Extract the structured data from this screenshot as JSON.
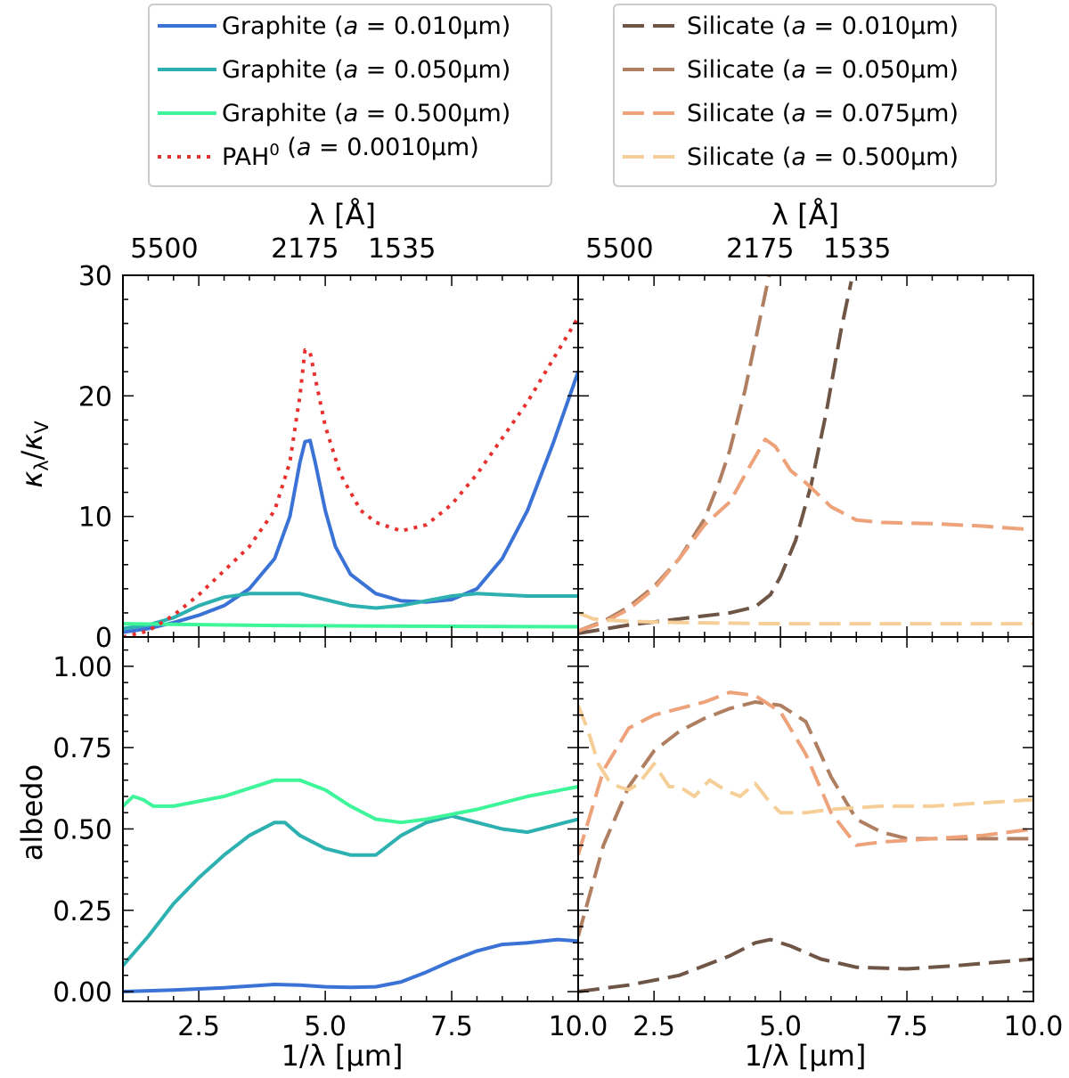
{
  "chart_data": [
    {
      "type": "line",
      "panel": "top-left",
      "ylabel": "κλ/κV",
      "top_axis_label": "λ [Å]",
      "top_ticks": [
        {
          "x": 1.818,
          "label": "5500"
        },
        {
          "x": 4.598,
          "label": "2175"
        },
        {
          "x": 6.515,
          "label": "1535"
        }
      ],
      "xlim": [
        1.0,
        10.0
      ],
      "ylim": [
        0,
        30
      ],
      "yticks": [
        0,
        10,
        20,
        30
      ],
      "series": [
        {
          "name": "Graphite (a = 0.010μm)",
          "color": "#3a72d6",
          "style": "solid",
          "x": [
            1.0,
            1.5,
            2.0,
            2.5,
            3.0,
            3.5,
            4.0,
            4.3,
            4.5,
            4.6,
            4.7,
            4.8,
            5.0,
            5.2,
            5.5,
            6.0,
            6.5,
            7.0,
            7.5,
            8.0,
            8.5,
            9.0,
            9.5,
            10.0
          ],
          "y": [
            0.4,
            0.7,
            1.2,
            1.8,
            2.6,
            4.0,
            6.5,
            10.0,
            14.5,
            16.2,
            16.3,
            14.5,
            10.5,
            7.5,
            5.2,
            3.6,
            3.0,
            2.9,
            3.1,
            4.0,
            6.5,
            10.5,
            16.0,
            22.0
          ]
        },
        {
          "name": "Graphite (a = 0.050μm)",
          "color": "#2cb0b0",
          "style": "solid",
          "x": [
            1.0,
            1.5,
            2.0,
            2.5,
            3.0,
            3.5,
            4.0,
            4.5,
            5.0,
            5.5,
            6.0,
            6.5,
            7.0,
            7.5,
            8.0,
            8.5,
            9.0,
            10.0
          ],
          "y": [
            0.7,
            1.0,
            1.6,
            2.6,
            3.3,
            3.6,
            3.6,
            3.6,
            3.1,
            2.6,
            2.4,
            2.6,
            3.0,
            3.4,
            3.6,
            3.5,
            3.4,
            3.4
          ]
        },
        {
          "name": "Graphite (a = 0.500μm)",
          "color": "#3ef59a",
          "style": "solid",
          "x": [
            1.0,
            2.0,
            4.0,
            6.0,
            8.0,
            10.0
          ],
          "y": [
            1.1,
            1.05,
            0.95,
            0.9,
            0.88,
            0.85
          ]
        },
        {
          "name": "PAH0 (a = 0.0010μm)",
          "color": "#e8302e",
          "style": "dotted",
          "x": [
            1.0,
            1.5,
            2.0,
            2.5,
            3.0,
            3.5,
            4.0,
            4.3,
            4.5,
            4.6,
            4.7,
            4.8,
            5.0,
            5.3,
            5.7,
            6.0,
            6.5,
            7.0,
            7.5,
            8.0,
            8.5,
            9.0,
            9.5,
            10.0
          ],
          "y": [
            0.0,
            0.5,
            1.8,
            3.5,
            5.5,
            7.5,
            10.5,
            14.5,
            20.0,
            23.8,
            23.6,
            21.5,
            17.5,
            13.5,
            10.5,
            9.5,
            8.8,
            9.3,
            11.0,
            13.5,
            16.5,
            19.5,
            23.0,
            26.5
          ]
        }
      ]
    },
    {
      "type": "line",
      "panel": "top-right",
      "top_axis_label": "λ [Å]",
      "top_ticks": [
        {
          "x": 1.818,
          "label": "5500"
        },
        {
          "x": 4.598,
          "label": "2175"
        },
        {
          "x": 6.515,
          "label": "1535"
        }
      ],
      "xlim": [
        1.0,
        10.0
      ],
      "ylim": [
        0,
        30
      ],
      "series": [
        {
          "name": "Silicate (a = 0.010μm)",
          "color": "#6f5545",
          "style": "dashed",
          "x": [
            1.0,
            2.0,
            3.0,
            4.0,
            4.5,
            4.8,
            5.0,
            5.3,
            5.6,
            5.9,
            6.2,
            6.4
          ],
          "y": [
            0.3,
            1.0,
            1.5,
            2.0,
            2.5,
            3.5,
            5.0,
            8.0,
            12.5,
            18.5,
            25.5,
            29.5
          ]
        },
        {
          "name": "Silicate (a = 0.050μm)",
          "color": "#b07f61",
          "style": "dashed",
          "x": [
            1.0,
            1.5,
            2.0,
            2.5,
            3.0,
            3.5,
            3.8,
            4.0,
            4.3,
            4.6,
            4.8
          ],
          "y": [
            0.5,
            1.3,
            2.5,
            4.2,
            6.5,
            9.8,
            13.0,
            15.5,
            20.5,
            26.5,
            30.5
          ]
        },
        {
          "name": "Silicate (a = 0.075μm)",
          "color": "#eda27a",
          "style": "dashed",
          "x": [
            1.0,
            1.5,
            2.0,
            2.5,
            3.0,
            3.5,
            4.0,
            4.4,
            4.7,
            4.9,
            5.2,
            5.5,
            6.0,
            6.5,
            7.0,
            8.0,
            9.0,
            10.0
          ],
          "y": [
            0.5,
            1.2,
            2.3,
            4.0,
            6.5,
            9.3,
            11.2,
            14.2,
            16.4,
            15.8,
            13.8,
            12.8,
            10.8,
            9.7,
            9.5,
            9.4,
            9.2,
            8.9
          ]
        },
        {
          "name": "Silicate (a = 0.500μm)",
          "color": "#f6cf98",
          "style": "dashed",
          "x": [
            1.0,
            1.3,
            1.6,
            2.0,
            3.0,
            5.0,
            7.0,
            10.0
          ],
          "y": [
            2.0,
            1.5,
            1.4,
            1.3,
            1.2,
            1.1,
            1.1,
            1.1
          ]
        }
      ]
    },
    {
      "type": "line",
      "panel": "bottom-left",
      "ylabel": "albedo",
      "xlabel": "1/λ [μm]",
      "xlim": [
        1.0,
        10.0
      ],
      "ylim": [
        -0.03,
        1.09
      ],
      "yticks": [
        0.0,
        0.25,
        0.5,
        0.75,
        1.0
      ],
      "series": [
        {
          "name": "Graphite (a = 0.010μm)",
          "color": "#3a72d6",
          "style": "solid",
          "x": [
            1.0,
            2.0,
            3.0,
            4.0,
            4.5,
            5.0,
            5.5,
            6.0,
            6.5,
            7.0,
            7.5,
            8.0,
            8.5,
            9.0,
            9.3,
            9.6,
            10.0
          ],
          "y": [
            0.0,
            0.005,
            0.012,
            0.022,
            0.02,
            0.015,
            0.013,
            0.015,
            0.03,
            0.06,
            0.095,
            0.125,
            0.145,
            0.15,
            0.155,
            0.16,
            0.155
          ]
        },
        {
          "name": "Graphite (a = 0.050μm)",
          "color": "#2cb0b0",
          "style": "solid",
          "x": [
            1.0,
            1.5,
            2.0,
            2.5,
            3.0,
            3.5,
            4.0,
            4.2,
            4.5,
            5.0,
            5.5,
            6.0,
            6.5,
            7.0,
            7.5,
            8.0,
            8.5,
            9.0,
            9.5,
            10.0
          ],
          "y": [
            0.08,
            0.17,
            0.27,
            0.35,
            0.42,
            0.48,
            0.52,
            0.52,
            0.48,
            0.44,
            0.42,
            0.42,
            0.48,
            0.52,
            0.54,
            0.52,
            0.5,
            0.49,
            0.51,
            0.53
          ]
        },
        {
          "name": "Graphite (a = 0.500μm)",
          "color": "#3ef59a",
          "style": "solid",
          "x": [
            1.0,
            1.2,
            1.4,
            1.6,
            2.0,
            3.0,
            4.0,
            4.5,
            5.0,
            5.5,
            6.0,
            6.5,
            7.0,
            8.0,
            9.0,
            10.0
          ],
          "y": [
            0.57,
            0.6,
            0.59,
            0.57,
            0.57,
            0.6,
            0.65,
            0.65,
            0.62,
            0.57,
            0.53,
            0.52,
            0.53,
            0.56,
            0.6,
            0.63
          ]
        }
      ]
    },
    {
      "type": "line",
      "panel": "bottom-right",
      "xlabel": "1/λ [μm]",
      "xlim": [
        1.0,
        10.0
      ],
      "ylim": [
        -0.03,
        1.09
      ],
      "xticks": [
        2.5,
        5.0,
        7.5,
        10.0
      ],
      "series": [
        {
          "name": "Silicate (a = 0.010μm)",
          "color": "#6f5545",
          "style": "dashed",
          "x": [
            1.0,
            2.0,
            3.0,
            4.0,
            4.5,
            4.8,
            5.2,
            5.8,
            6.5,
            7.5,
            8.5,
            10.0
          ],
          "y": [
            0.0,
            0.02,
            0.05,
            0.11,
            0.15,
            0.16,
            0.14,
            0.1,
            0.075,
            0.07,
            0.08,
            0.1
          ]
        },
        {
          "name": "Silicate (a = 0.050μm)",
          "color": "#b07f61",
          "style": "dashed",
          "x": [
            1.0,
            1.5,
            2.0,
            2.5,
            3.0,
            3.5,
            4.0,
            4.5,
            5.0,
            5.5,
            6.0,
            6.5,
            7.0,
            7.5,
            8.0,
            9.0,
            10.0
          ],
          "y": [
            0.17,
            0.45,
            0.63,
            0.74,
            0.8,
            0.84,
            0.87,
            0.89,
            0.88,
            0.83,
            0.66,
            0.53,
            0.49,
            0.47,
            0.47,
            0.47,
            0.47
          ]
        },
        {
          "name": "Silicate (a = 0.075μm)",
          "color": "#eda27a",
          "style": "dashed",
          "x": [
            1.0,
            1.5,
            2.0,
            2.5,
            3.0,
            3.5,
            4.0,
            4.5,
            5.0,
            5.5,
            6.0,
            6.5,
            7.0,
            8.0,
            9.0,
            10.0
          ],
          "y": [
            0.42,
            0.68,
            0.81,
            0.85,
            0.87,
            0.89,
            0.92,
            0.91,
            0.86,
            0.73,
            0.55,
            0.45,
            0.46,
            0.47,
            0.48,
            0.5
          ]
        },
        {
          "name": "Silicate (a = 0.500μm)",
          "color": "#f6cf98",
          "style": "dashed",
          "x": [
            1.0,
            1.2,
            1.4,
            1.6,
            1.8,
            2.0,
            2.2,
            2.5,
            2.8,
            3.0,
            3.3,
            3.6,
            3.9,
            4.2,
            4.5,
            4.8,
            5.0,
            5.5,
            6.0,
            7.0,
            8.0,
            9.0,
            10.0
          ],
          "y": [
            0.88,
            0.8,
            0.7,
            0.65,
            0.63,
            0.62,
            0.64,
            0.7,
            0.63,
            0.63,
            0.6,
            0.65,
            0.62,
            0.6,
            0.64,
            0.58,
            0.55,
            0.55,
            0.56,
            0.57,
            0.57,
            0.58,
            0.59
          ]
        }
      ]
    }
  ],
  "legend_left": {
    "entries": [
      {
        "name": "Graphite",
        "a": "0.010μm",
        "sup": "",
        "color": "#3a72d6",
        "style": "solid"
      },
      {
        "name": "Graphite",
        "a": "0.050μm",
        "sup": "",
        "color": "#2cb0b0",
        "style": "solid"
      },
      {
        "name": "Graphite",
        "a": "0.500μm",
        "sup": "",
        "color": "#3ef59a",
        "style": "solid"
      },
      {
        "name": "PAH",
        "a": "0.0010μm",
        "sup": "0",
        "color": "#e8302e",
        "style": "dotted"
      }
    ]
  },
  "legend_right": {
    "entries": [
      {
        "name": "Silicate",
        "a": "0.010μm",
        "sup": "",
        "color": "#6f5545",
        "style": "dashed"
      },
      {
        "name": "Silicate",
        "a": "0.050μm",
        "sup": "",
        "color": "#b07f61",
        "style": "dashed"
      },
      {
        "name": "Silicate",
        "a": "0.075μm",
        "sup": "",
        "color": "#eda27a",
        "style": "dashed"
      },
      {
        "name": "Silicate",
        "a": "0.500μm",
        "sup": "",
        "color": "#f6cf98",
        "style": "dashed"
      }
    ]
  },
  "axis_text": {
    "top_label": "λ [Å]",
    "ylabel_top": "κλ/κV",
    "ylabel_bottom": "albedo",
    "xlabel": "1/λ [μm]",
    "top_ticks": [
      "5500",
      "2175",
      "1535"
    ],
    "y_ticks_top": [
      "0",
      "10",
      "20",
      "30"
    ],
    "y_ticks_bottom": [
      "0.00",
      "0.25",
      "0.50",
      "0.75",
      "1.00"
    ],
    "x_ticks_left": [
      "2.5",
      "5.0",
      "7.5",
      "10.0"
    ],
    "x_ticks_right": [
      "2.5",
      "5.0",
      "7.5",
      "10.0"
    ]
  }
}
